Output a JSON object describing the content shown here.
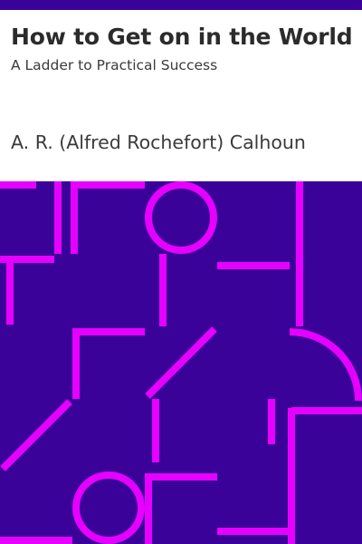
{
  "cover": {
    "title": "How to Get on in the World",
    "subtitle": "A Ladder to Practical Success",
    "author": "A. R. (Alfred Rochefort) Calhoun"
  },
  "colors": {
    "background": "#3b0299",
    "pattern": "#e600ff",
    "title_text": "#2b2b2b",
    "body_text": "#3a3a3a"
  }
}
